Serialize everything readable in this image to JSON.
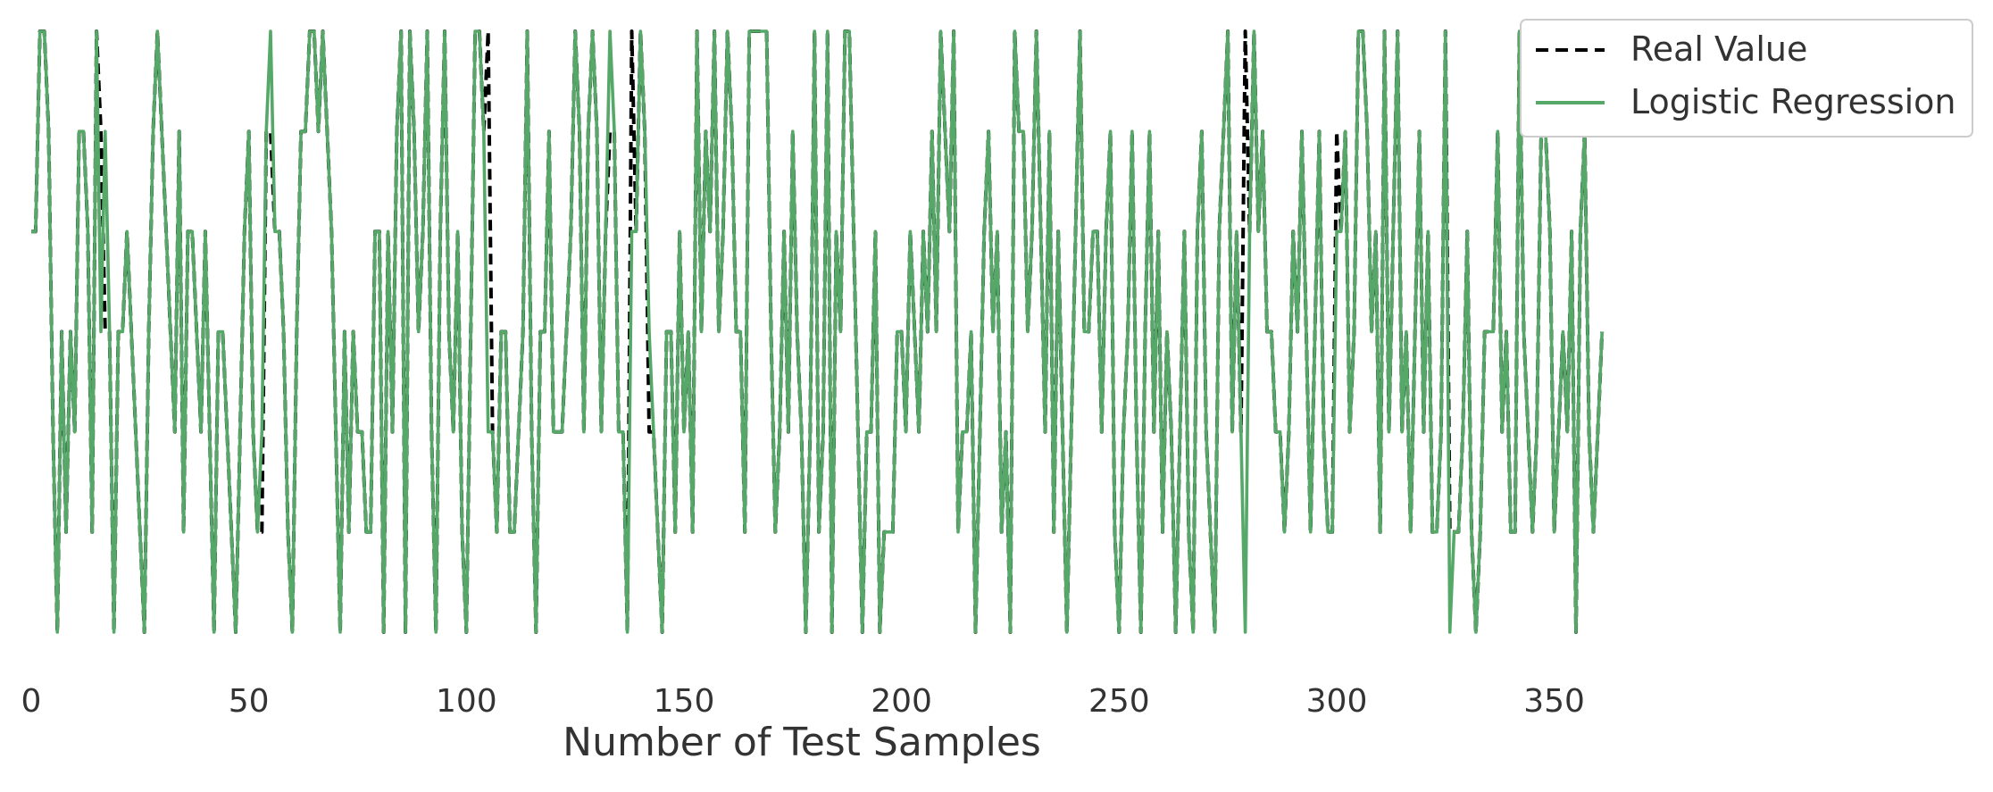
{
  "chart_data": {
    "type": "line",
    "title": "",
    "xlabel": "Number of Test Samples",
    "ylabel": "",
    "xlim": [
      0,
      355
    ],
    "ylim": [
      0,
      6
    ],
    "x_ticks": [
      0,
      50,
      100,
      150,
      200,
      250,
      300,
      350
    ],
    "y_ticks_visible": false,
    "grid": false,
    "legend_position": "top-right",
    "series": [
      {
        "name": "Real Value",
        "color": "#000000",
        "style": "dashed",
        "values": [
          4,
          4,
          6,
          6,
          5,
          2,
          0,
          3,
          1,
          3,
          2,
          5,
          5,
          4,
          1,
          6,
          3,
          5,
          3,
          0,
          3,
          3,
          4,
          3,
          2,
          1,
          0,
          3,
          5,
          6,
          5,
          4,
          3,
          2,
          5,
          1,
          4,
          4,
          3,
          2,
          4,
          2,
          0,
          3,
          3,
          2,
          1,
          0,
          2,
          4,
          5,
          2,
          1,
          2,
          5,
          6,
          4,
          4,
          3,
          1,
          0,
          3,
          5,
          5,
          6,
          6,
          5,
          6,
          5,
          4,
          2,
          0,
          3,
          1,
          3,
          2,
          2,
          1,
          1,
          4,
          4,
          0,
          4,
          2,
          5,
          6,
          0,
          6,
          5,
          3,
          4,
          6,
          2,
          0,
          4,
          6,
          3,
          2,
          4,
          1,
          0,
          3,
          6,
          6,
          5,
          2,
          2,
          1,
          3,
          3,
          1,
          1,
          2,
          3,
          6,
          2,
          0,
          3,
          3,
          5,
          2,
          2,
          2,
          3,
          4,
          6,
          5,
          2,
          5,
          6,
          5,
          2,
          4,
          6,
          5,
          2,
          2,
          0,
          4,
          4,
          6,
          5,
          3,
          2,
          1,
          0,
          3,
          3,
          1,
          4,
          2,
          3,
          1,
          6,
          3,
          5,
          4,
          6,
          3,
          4,
          6,
          5,
          3,
          3,
          1,
          6,
          6,
          6,
          6,
          6,
          3,
          1,
          2,
          4,
          2,
          5,
          3,
          2,
          0,
          2,
          6,
          1,
          2,
          6,
          0,
          4,
          3,
          6,
          6,
          4,
          2,
          0,
          2,
          2,
          4,
          0,
          1,
          1,
          1,
          3,
          3,
          2,
          4,
          3,
          2,
          4,
          3,
          5,
          3,
          6,
          5,
          4,
          6,
          1,
          2,
          2,
          3,
          0,
          2,
          4,
          5,
          3,
          4,
          1,
          2,
          0,
          6,
          5,
          5,
          3,
          4,
          6,
          4,
          2,
          5,
          1,
          4,
          2,
          0,
          2,
          4,
          6,
          3,
          3,
          4,
          4,
          2,
          4,
          5,
          1,
          0,
          2,
          3,
          5,
          2,
          0,
          3,
          5,
          2,
          4,
          1,
          3,
          2,
          0,
          2,
          4,
          1,
          0,
          4,
          5,
          2,
          1,
          0,
          4,
          5,
          6,
          2,
          4,
          2,
          0,
          4,
          6,
          4,
          5,
          3,
          3,
          2,
          2,
          1,
          2,
          4,
          3,
          5,
          3,
          1,
          3,
          5,
          2,
          1,
          1,
          4,
          4,
          5,
          2,
          3,
          6,
          6,
          5,
          3,
          4,
          1,
          6,
          2,
          4,
          6,
          2,
          3,
          1,
          3,
          5,
          2,
          4,
          1,
          1,
          2,
          6,
          0,
          1,
          1,
          2,
          4,
          1,
          0,
          1,
          3,
          3,
          3,
          5,
          2,
          3,
          1,
          1,
          6,
          3,
          2,
          1,
          2,
          5,
          5,
          4,
          1,
          2,
          3,
          2,
          4,
          0,
          4,
          5,
          2,
          1,
          2,
          3
        ],
        "diff": {
          "16": 5,
          "17": 3,
          "51": 2,
          "52": 1,
          "53": 1,
          "55": 5,
          "87": 6,
          "105": 6,
          "133": 5,
          "138": 6,
          "142": 2,
          "279": 6,
          "280": 4,
          "300": 5,
          "326": 1
        }
      },
      {
        "name": "Logistic Regression",
        "color": "#55a868",
        "style": "solid",
        "values": [
          4,
          4,
          6,
          6,
          5,
          2,
          0,
          3,
          1,
          3,
          2,
          5,
          5,
          4,
          1,
          6,
          3,
          5,
          3,
          0,
          3,
          3,
          4,
          3,
          2,
          1,
          0,
          3,
          5,
          6,
          5,
          4,
          3,
          2,
          5,
          1,
          4,
          4,
          3,
          2,
          4,
          2,
          0,
          3,
          3,
          2,
          1,
          0,
          2,
          4,
          5,
          2,
          1,
          2,
          5,
          6,
          4,
          4,
          3,
          1,
          0,
          3,
          5,
          5,
          6,
          6,
          5,
          6,
          5,
          4,
          2,
          0,
          3,
          1,
          3,
          2,
          2,
          1,
          1,
          4,
          4,
          0,
          4,
          2,
          5,
          6,
          0,
          6,
          5,
          3,
          4,
          6,
          2,
          0,
          4,
          6,
          3,
          2,
          4,
          1,
          0,
          3,
          6,
          6,
          5,
          2,
          2,
          1,
          3,
          3,
          1,
          1,
          2,
          3,
          6,
          2,
          0,
          3,
          3,
          5,
          2,
          2,
          2,
          3,
          4,
          6,
          5,
          2,
          5,
          6,
          5,
          2,
          4,
          6,
          5,
          2,
          2,
          0,
          4,
          4,
          6,
          5,
          3,
          2,
          1,
          0,
          3,
          3,
          1,
          4,
          2,
          3,
          1,
          6,
          3,
          5,
          4,
          6,
          3,
          4,
          6,
          5,
          3,
          3,
          1,
          6,
          6,
          6,
          6,
          6,
          3,
          1,
          2,
          4,
          2,
          5,
          3,
          2,
          0,
          2,
          6,
          1,
          2,
          6,
          0,
          4,
          3,
          6,
          6,
          4,
          2,
          0,
          2,
          2,
          4,
          0,
          1,
          1,
          1,
          3,
          3,
          2,
          4,
          3,
          2,
          4,
          3,
          5,
          3,
          6,
          5,
          4,
          6,
          1,
          2,
          2,
          3,
          0,
          2,
          4,
          5,
          3,
          4,
          1,
          2,
          0,
          6,
          5,
          5,
          3,
          4,
          6,
          4,
          2,
          5,
          1,
          4,
          2,
          0,
          2,
          4,
          6,
          3,
          3,
          4,
          4,
          2,
          4,
          5,
          1,
          0,
          2,
          3,
          5,
          2,
          0,
          3,
          5,
          2,
          4,
          1,
          3,
          2,
          0,
          2,
          4,
          1,
          0,
          4,
          5,
          2,
          1,
          0,
          4,
          5,
          6,
          2,
          4,
          2,
          0,
          4,
          6,
          4,
          5,
          3,
          3,
          2,
          2,
          1,
          2,
          4,
          3,
          5,
          3,
          1,
          3,
          5,
          2,
          1,
          1,
          4,
          4,
          5,
          2,
          3,
          6,
          6,
          5,
          3,
          4,
          1,
          6,
          2,
          4,
          6,
          2,
          3,
          1,
          3,
          5,
          2,
          4,
          1,
          1,
          2,
          6,
          0,
          1,
          1,
          2,
          4,
          1,
          0,
          1,
          3,
          3,
          3,
          5,
          2,
          3,
          1,
          1,
          6,
          3,
          2,
          1,
          2,
          5,
          5,
          4,
          1,
          2,
          3,
          2,
          4,
          0,
          4,
          5,
          2,
          1,
          2,
          3
        ]
      }
    ]
  }
}
